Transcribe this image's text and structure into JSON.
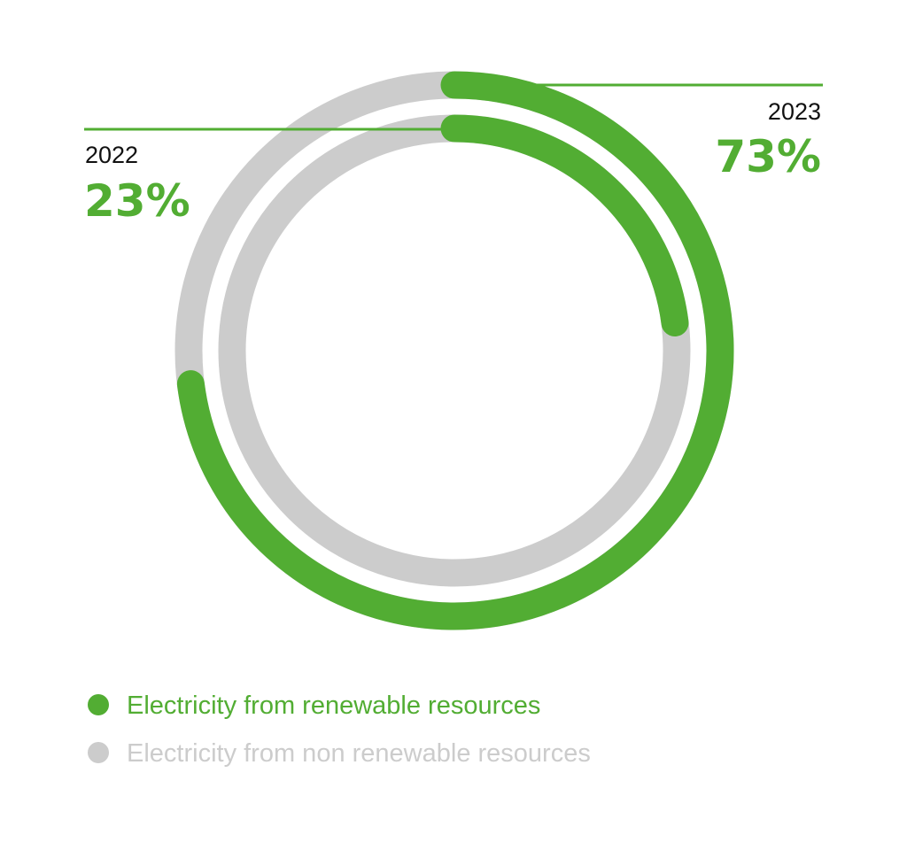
{
  "chart_data": {
    "type": "donut",
    "colors": {
      "renewable": "#52ad33",
      "non_renewable": "#cccccc"
    },
    "rings": [
      {
        "year": "2023",
        "value_label": "73%",
        "renewable_share": 73,
        "ring": "outer"
      },
      {
        "year": "2022",
        "value_label": "23%",
        "renewable_share": 23,
        "ring": "inner"
      }
    ],
    "legend": [
      {
        "key": "renewable",
        "label": "Electricity from renewable resources"
      },
      {
        "key": "non_renewable",
        "label": "Electricity from non renewable resources"
      }
    ]
  }
}
